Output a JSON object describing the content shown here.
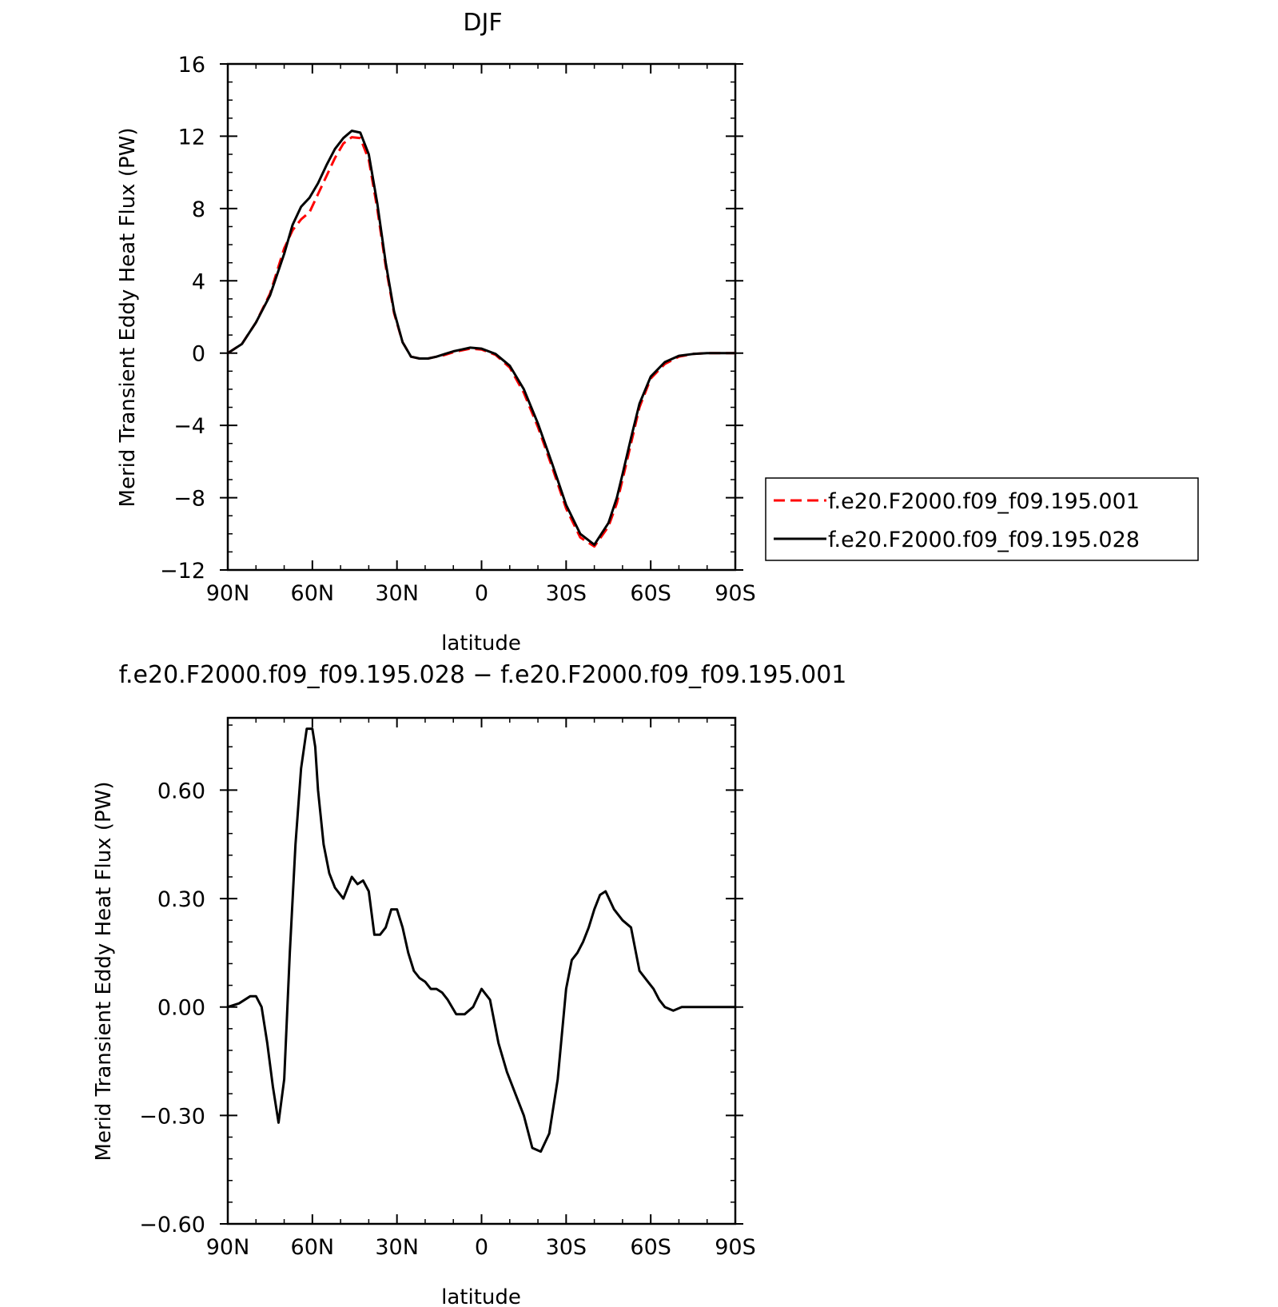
{
  "chart_data": [
    {
      "type": "line",
      "title": "DJF",
      "xlabel": "latitude",
      "ylabel": "Merid Transient Eddy Heat Flux (PW)",
      "x_tick_labels": [
        "90N",
        "60N",
        "30N",
        "0",
        "30S",
        "60S",
        "90S"
      ],
      "x_tick_values": [
        90,
        60,
        30,
        0,
        -30,
        -60,
        -90
      ],
      "y_tick_labels": [
        "16",
        "12",
        "8",
        "4",
        "0",
        "−4",
        "−8",
        "−12"
      ],
      "y_tick_values": [
        16,
        12,
        8,
        4,
        0,
        -4,
        -8,
        -12
      ],
      "xlim": [
        90,
        -90
      ],
      "ylim": [
        -12,
        16
      ],
      "legend_position": "right",
      "grid": false,
      "series": [
        {
          "name": "f.e20.F2000.f09_f09.195.001",
          "color": "#ff0000",
          "dash": "dashed",
          "x": [
            90,
            85,
            80,
            75,
            70,
            67,
            64,
            61,
            58,
            55,
            52,
            49,
            46,
            43,
            40,
            37,
            34,
            31,
            28,
            25,
            22,
            19,
            16,
            13,
            10,
            7,
            4,
            0,
            -5,
            -10,
            -15,
            -20,
            -25,
            -30,
            -35,
            -40,
            -45,
            -48,
            -50,
            -53,
            -56,
            -60,
            -65,
            -70,
            -75,
            -80,
            -85,
            -90
          ],
          "y": [
            0,
            0.5,
            1.7,
            3.3,
            5.8,
            6.8,
            7.4,
            7.8,
            8.8,
            9.8,
            10.8,
            11.6,
            11.95,
            11.9,
            10.7,
            8.0,
            4.8,
            2.2,
            0.6,
            -0.2,
            -0.3,
            -0.3,
            -0.2,
            -0.1,
            0.05,
            0.15,
            0.25,
            0.2,
            -0.1,
            -0.8,
            -2.2,
            -4.1,
            -6.3,
            -8.6,
            -10.2,
            -10.7,
            -9.6,
            -8.3,
            -7.0,
            -5.0,
            -3.0,
            -1.4,
            -0.6,
            -0.2,
            -0.05,
            0,
            0,
            0
          ]
        },
        {
          "name": "f.e20.F2000.f09_f09.195.028",
          "color": "#000000",
          "dash": "solid",
          "x": [
            90,
            85,
            80,
            75,
            70,
            67,
            64,
            61,
            58,
            55,
            52,
            49,
            46,
            43,
            40,
            37,
            34,
            31,
            28,
            25,
            22,
            19,
            16,
            13,
            10,
            7,
            4,
            0,
            -5,
            -10,
            -15,
            -20,
            -25,
            -30,
            -35,
            -40,
            -45,
            -48,
            -50,
            -53,
            -56,
            -60,
            -65,
            -70,
            -75,
            -80,
            -85,
            -90
          ],
          "y": [
            0,
            0.5,
            1.7,
            3.2,
            5.5,
            7.1,
            8.1,
            8.6,
            9.4,
            10.4,
            11.3,
            11.9,
            12.3,
            12.2,
            11.0,
            8.3,
            5.0,
            2.3,
            0.6,
            -0.2,
            -0.3,
            -0.3,
            -0.2,
            -0.05,
            0.1,
            0.2,
            0.3,
            0.25,
            -0.05,
            -0.7,
            -2.0,
            -3.9,
            -6.1,
            -8.4,
            -10.0,
            -10.6,
            -9.4,
            -8.0,
            -6.7,
            -4.7,
            -2.8,
            -1.3,
            -0.5,
            -0.15,
            -0.05,
            0,
            0,
            0
          ]
        }
      ]
    },
    {
      "type": "line",
      "title": "f.e20.F2000.f09_f09.195.028 − f.e20.F2000.f09_f09.195.001",
      "xlabel": "latitude",
      "ylabel": "Merid Transient Eddy Heat Flux (PW)",
      "x_tick_labels": [
        "90N",
        "60N",
        "30N",
        "0",
        "30S",
        "60S",
        "90S"
      ],
      "x_tick_values": [
        90,
        60,
        30,
        0,
        -30,
        -60,
        -90
      ],
      "y_tick_labels": [
        "0.60",
        "0.30",
        "0.00",
        "−0.30",
        "−0.60"
      ],
      "y_tick_values": [
        0.6,
        0.3,
        0.0,
        -0.3,
        -0.6
      ],
      "xlim": [
        90,
        -90
      ],
      "ylim": [
        -0.6,
        0.8
      ],
      "grid": false,
      "series": [
        {
          "color": "#000000",
          "dash": "solid",
          "x": [
            90,
            86,
            82,
            80,
            78,
            76,
            74,
            72,
            70,
            68,
            66,
            64,
            62,
            60,
            59,
            58,
            56,
            54,
            52,
            49,
            46,
            44,
            42,
            40,
            38,
            36,
            34,
            32,
            30,
            28,
            26,
            24,
            22,
            20,
            18,
            16,
            14,
            12,
            9,
            6,
            3,
            0,
            -3,
            -6,
            -9,
            -12,
            -15,
            -18,
            -21,
            -24,
            -27,
            -30,
            -32,
            -34,
            -36,
            -38,
            -40,
            -42,
            -44,
            -47,
            -50,
            -53,
            -56,
            -59,
            -61,
            -63,
            -65,
            -68,
            -71,
            -74,
            -77,
            -80,
            -83,
            -86,
            -88,
            -90
          ],
          "y": [
            0.0,
            0.01,
            0.03,
            0.03,
            0.0,
            -0.1,
            -0.22,
            -0.32,
            -0.2,
            0.15,
            0.45,
            0.66,
            0.77,
            0.77,
            0.72,
            0.6,
            0.45,
            0.37,
            0.33,
            0.3,
            0.36,
            0.34,
            0.35,
            0.32,
            0.2,
            0.2,
            0.22,
            0.27,
            0.27,
            0.22,
            0.15,
            0.1,
            0.08,
            0.07,
            0.05,
            0.05,
            0.04,
            0.02,
            -0.02,
            -0.02,
            0.0,
            0.05,
            0.02,
            -0.1,
            -0.18,
            -0.24,
            -0.3,
            -0.39,
            -0.4,
            -0.35,
            -0.2,
            0.05,
            0.13,
            0.15,
            0.18,
            0.22,
            0.27,
            0.31,
            0.32,
            0.27,
            0.24,
            0.22,
            0.1,
            0.07,
            0.05,
            0.02,
            0.0,
            -0.01,
            0.0,
            0.0,
            0.0,
            0.0,
            0.0,
            0.0,
            0.0,
            0.0
          ]
        }
      ]
    }
  ]
}
